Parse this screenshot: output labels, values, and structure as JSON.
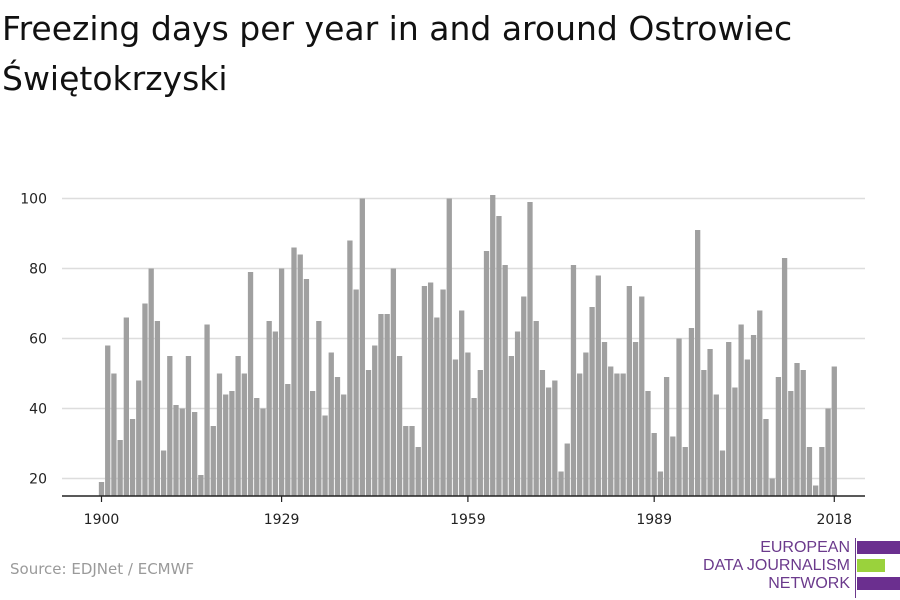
{
  "title": "Freezing days per year in and around Ostrowiec Świętokrzyski",
  "source": "Source: EDJNet / ECMWF",
  "logo": {
    "lines": [
      "EUROPEAN",
      "DATA JOURNALISM",
      "NETWORK"
    ],
    "colors": [
      "#6b2f8f",
      "#9ad23c",
      "#6b2f8f"
    ]
  },
  "colors": {
    "bar": "#a0a0a0",
    "grid": "#dddddd",
    "axis": "#222222"
  },
  "chart_data": {
    "type": "bar",
    "ylim": [
      15,
      103
    ],
    "yticks": [
      20,
      40,
      60,
      80,
      100
    ],
    "xticks": [
      1900,
      1929,
      1959,
      1989,
      2018
    ],
    "grid": true,
    "x": [
      1900,
      1901,
      1902,
      1903,
      1904,
      1905,
      1906,
      1907,
      1908,
      1909,
      1910,
      1911,
      1912,
      1913,
      1914,
      1915,
      1916,
      1917,
      1918,
      1919,
      1920,
      1921,
      1922,
      1923,
      1924,
      1925,
      1926,
      1927,
      1928,
      1929,
      1930,
      1931,
      1932,
      1933,
      1934,
      1935,
      1936,
      1937,
      1938,
      1939,
      1940,
      1941,
      1942,
      1943,
      1944,
      1945,
      1946,
      1947,
      1948,
      1949,
      1950,
      1951,
      1952,
      1953,
      1954,
      1955,
      1956,
      1957,
      1958,
      1959,
      1960,
      1961,
      1962,
      1963,
      1964,
      1965,
      1966,
      1967,
      1968,
      1969,
      1970,
      1971,
      1972,
      1973,
      1974,
      1975,
      1976,
      1977,
      1978,
      1979,
      1980,
      1981,
      1982,
      1983,
      1984,
      1985,
      1986,
      1987,
      1988,
      1989,
      1990,
      1991,
      1992,
      1993,
      1994,
      1995,
      1996,
      1997,
      1998,
      1999,
      2000,
      2001,
      2002,
      2003,
      2004,
      2005,
      2006,
      2007,
      2008,
      2009,
      2010,
      2011,
      2012,
      2013,
      2014,
      2015,
      2016,
      2017,
      2018
    ],
    "values": [
      19,
      58,
      50,
      31,
      66,
      37,
      48,
      70,
      80,
      65,
      28,
      55,
      41,
      40,
      55,
      39,
      21,
      64,
      35,
      50,
      44,
      45,
      55,
      50,
      79,
      43,
      40,
      65,
      62,
      80,
      47,
      86,
      84,
      77,
      45,
      65,
      38,
      56,
      49,
      44,
      88,
      74,
      100,
      51,
      58,
      67,
      67,
      80,
      55,
      35,
      35,
      29,
      75,
      76,
      66,
      74,
      100,
      54,
      68,
      56,
      43,
      51,
      85,
      101,
      95,
      81,
      55,
      62,
      72,
      99,
      65,
      51,
      46,
      48,
      22,
      30,
      81,
      50,
      56,
      69,
      78,
      59,
      52,
      50,
      50,
      75,
      59,
      72,
      45,
      33,
      22,
      49,
      32,
      60,
      29,
      63,
      91,
      51,
      57,
      44,
      28,
      59,
      46,
      64,
      54,
      61,
      68,
      37,
      20,
      49,
      83,
      45,
      53,
      51,
      29,
      18,
      29,
      40,
      52
    ]
  }
}
